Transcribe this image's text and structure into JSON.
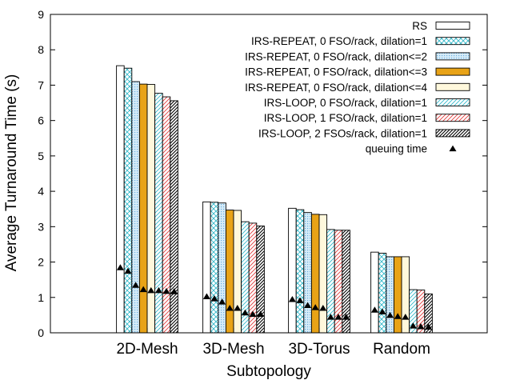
{
  "chart_data": {
    "type": "bar",
    "title": "",
    "xlabel": "Subtopology",
    "ylabel": "Average Turnaround Time (s)",
    "ylim": [
      0,
      9
    ],
    "yticks": [
      "0",
      "1",
      "2",
      "3",
      "4",
      "5",
      "6",
      "7",
      "8",
      "9"
    ],
    "categories": [
      "2D-Mesh",
      "3D-Mesh",
      "3D-Torus",
      "Random"
    ],
    "legend_position": "top-right",
    "series": [
      {
        "name": "RS",
        "values": [
          7.55,
          3.7,
          3.52,
          2.28
        ],
        "color": "#ffffff",
        "pattern": "none"
      },
      {
        "name": "IRS-REPEAT, 0 FSO/rack, dilation=1",
        "values": [
          7.48,
          3.69,
          3.48,
          2.25
        ],
        "color": "#33b8c9",
        "pattern": "crosshatch"
      },
      {
        "name": "IRS-REPEAT, 0 FSO/rack, dilation<=2",
        "values": [
          7.1,
          3.67,
          3.4,
          2.15
        ],
        "color": "#6aaee0",
        "pattern": "dots"
      },
      {
        "name": "IRS-REPEAT, 0 FSO/rack, dilation<=3",
        "values": [
          7.03,
          3.47,
          3.35,
          2.15
        ],
        "color": "#e8a317",
        "pattern": "solid"
      },
      {
        "name": "IRS-REPEAT, 0 FSO/rack, dilation<=4",
        "values": [
          7.02,
          3.46,
          3.34,
          2.15
        ],
        "color": "#fff8dc",
        "pattern": "solid"
      },
      {
        "name": "IRS-LOOP, 0 FSO/rack, dilation=1",
        "values": [
          6.77,
          3.14,
          2.92,
          1.22
        ],
        "color": "#33b8c9",
        "pattern": "diagonal"
      },
      {
        "name": "IRS-LOOP, 1 FSO/rack, dilation=1",
        "values": [
          6.67,
          3.1,
          2.9,
          1.21
        ],
        "color": "#e03c3c",
        "pattern": "diagonal"
      },
      {
        "name": "IRS-LOOP, 2 FSOs/rack, dilation=1",
        "values": [
          6.56,
          3.02,
          2.9,
          1.1
        ],
        "color": "#000000",
        "pattern": "diagonal-dense"
      }
    ],
    "markers": {
      "name": "queuing time",
      "symbol": "filled-triangle",
      "values": [
        [
          1.85,
          1.75,
          1.35,
          1.23,
          1.2,
          1.2,
          1.18,
          1.17
        ],
        [
          1.03,
          0.97,
          0.88,
          0.7,
          0.7,
          0.57,
          0.53,
          0.53
        ],
        [
          0.95,
          0.92,
          0.78,
          0.72,
          0.7,
          0.45,
          0.45,
          0.45
        ],
        [
          0.65,
          0.6,
          0.5,
          0.47,
          0.45,
          0.2,
          0.18,
          0.17
        ]
      ]
    }
  }
}
